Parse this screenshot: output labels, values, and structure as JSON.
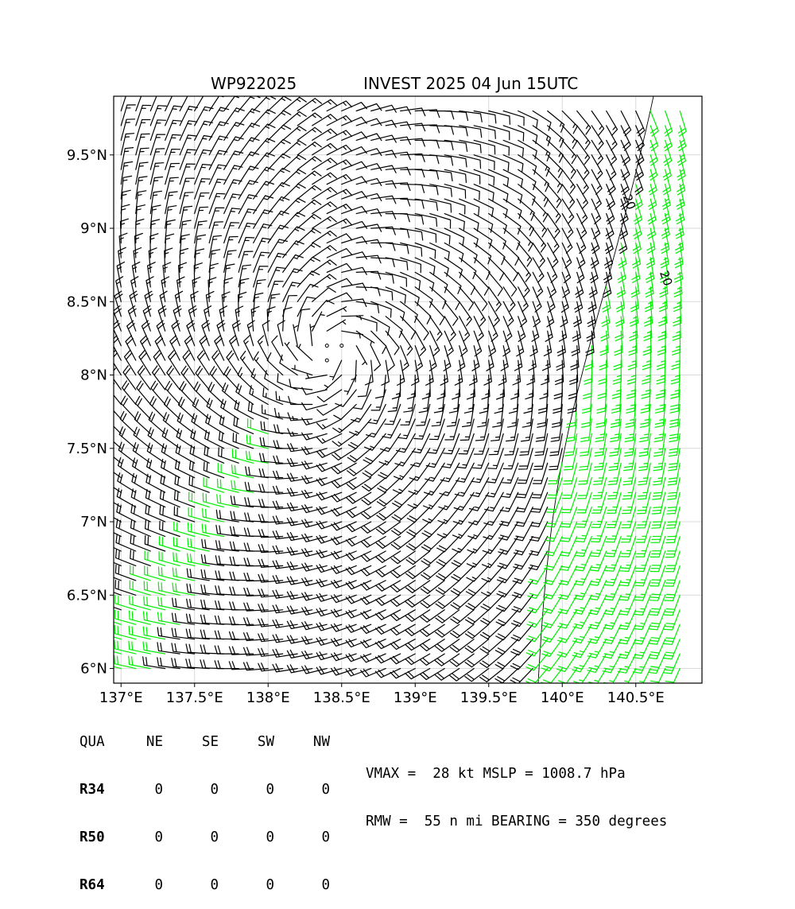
{
  "chart_data": {
    "type": "wind_barbs",
    "title_left": "WP922025",
    "title_right": "INVEST 2025 04 Jun 15UTC",
    "xlim": [
      136.95,
      140.95
    ],
    "ylim": [
      5.9,
      9.9
    ],
    "x_ticks": [
      {
        "value": 137.0,
        "label": "137°E"
      },
      {
        "value": 137.5,
        "label": "137.5°E"
      },
      {
        "value": 138.0,
        "label": "138°E"
      },
      {
        "value": 138.5,
        "label": "138.5°E"
      },
      {
        "value": 139.0,
        "label": "139°E"
      },
      {
        "value": 139.5,
        "label": "139.5°E"
      },
      {
        "value": 140.0,
        "label": "140°E"
      },
      {
        "value": 140.5,
        "label": "140.5°E"
      }
    ],
    "y_ticks": [
      {
        "value": 6.0,
        "label": "6°N"
      },
      {
        "value": 6.5,
        "label": "6.5°N"
      },
      {
        "value": 7.0,
        "label": "7°N"
      },
      {
        "value": 7.5,
        "label": "7.5°N"
      },
      {
        "value": 8.0,
        "label": "8°N"
      },
      {
        "value": 8.5,
        "label": "8.5°N"
      },
      {
        "value": 9.0,
        "label": "9°N"
      },
      {
        "value": 9.5,
        "label": "9.5°N"
      }
    ],
    "grid": true,
    "center": {
      "lon": 138.35,
      "lat": 8.05
    },
    "contour_labels": [
      {
        "text": "20",
        "lon": 140.43,
        "lat": 9.17,
        "rotation": 70
      },
      {
        "text": "20",
        "lon": 140.68,
        "lat": 8.65,
        "rotation": 70
      }
    ],
    "barb_colors": {
      "normal": "#000000",
      "high": "#00ee00"
    },
    "high_wind_threshold_kt": 20
  },
  "quadrant_table": {
    "header": [
      "QUA",
      "NE",
      "SE",
      "SW",
      "NW"
    ],
    "rows": [
      {
        "label": "R34",
        "values": [
          "0",
          "0",
          "0",
          "0"
        ]
      },
      {
        "label": "R50",
        "values": [
          "0",
          "0",
          "0",
          "0"
        ]
      },
      {
        "label": "R64",
        "values": [
          "0",
          "0",
          "0",
          "0"
        ]
      }
    ]
  },
  "stats": {
    "line1": "VMAX =  28 kt MSLP = 1008.7 hPa",
    "line2": "RMW =  55 n mi BEARING = 350 degrees"
  }
}
